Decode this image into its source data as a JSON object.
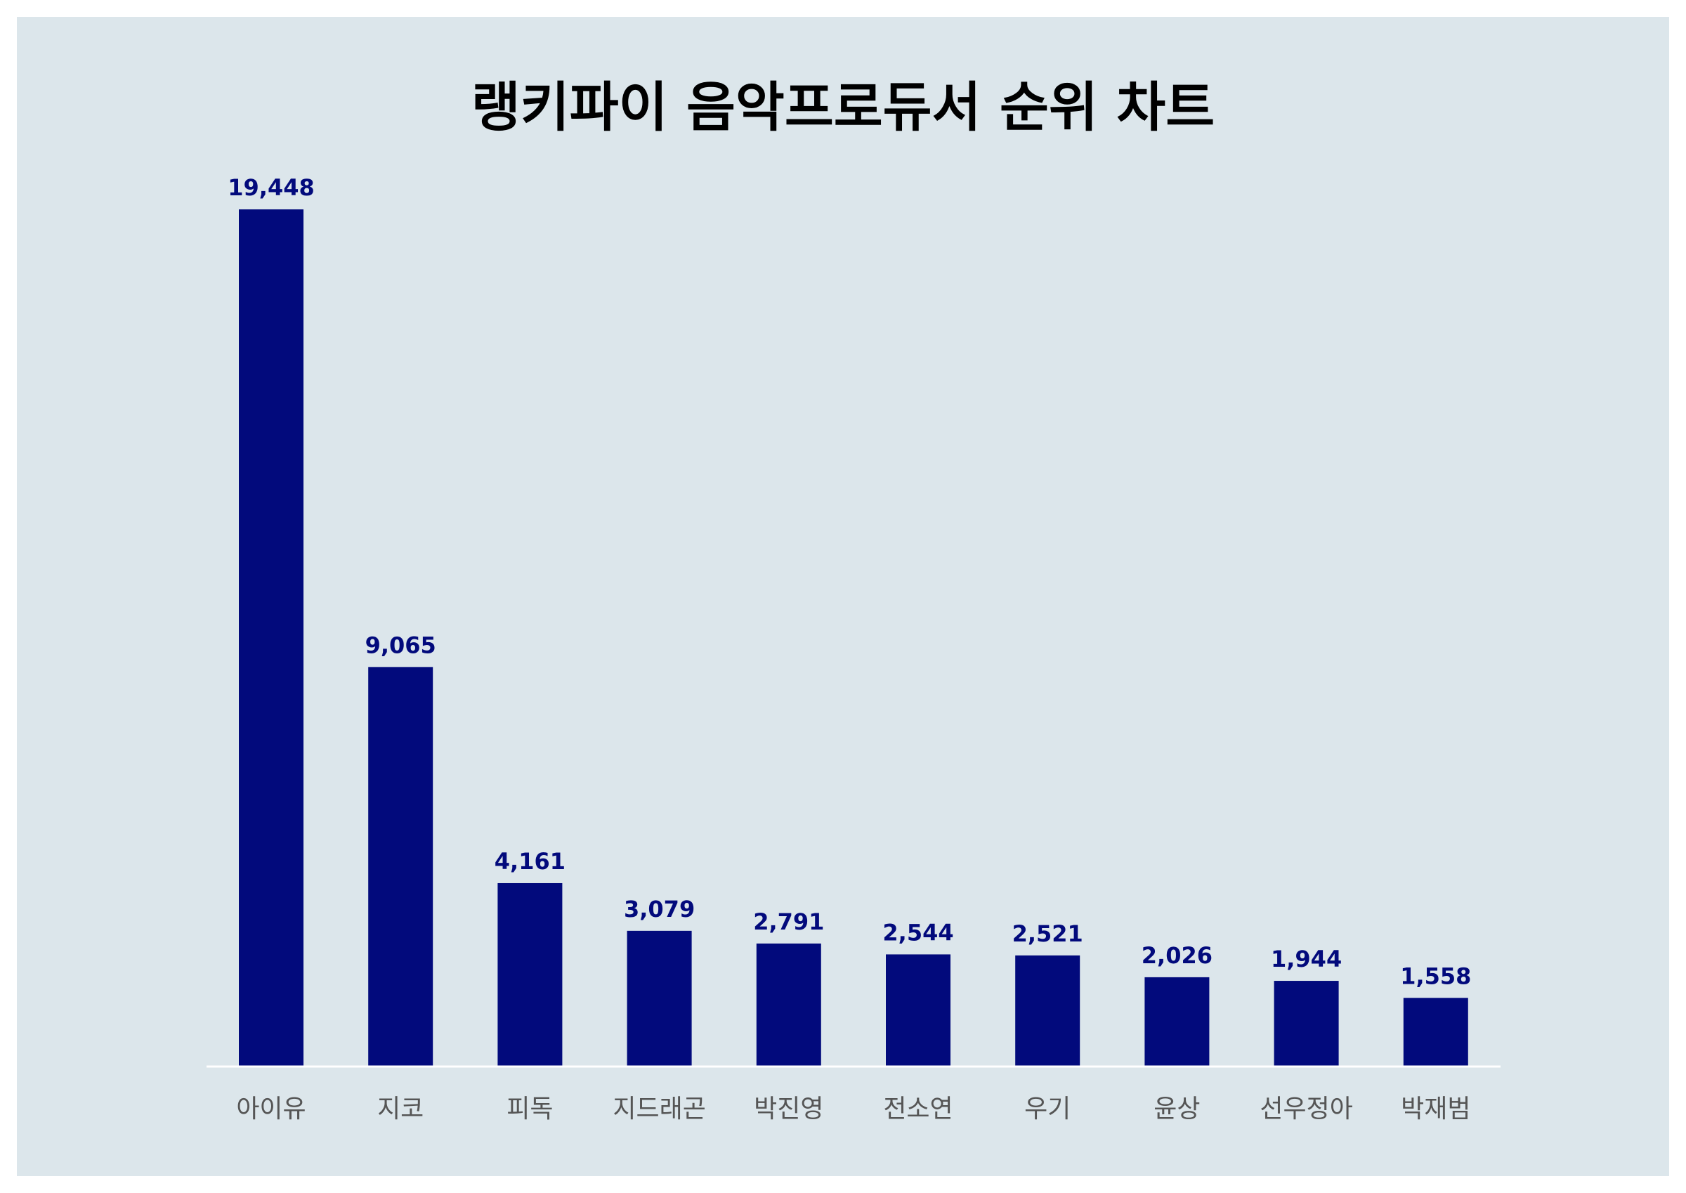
{
  "chart_data": {
    "type": "bar",
    "title": "랭키파이 음악프로듀서 순위 차트",
    "categories": [
      "아이유",
      "지코",
      "피독",
      "지드래곤",
      "박진영",
      "전소연",
      "우기",
      "윤상",
      "선우정아",
      "박재범"
    ],
    "values": [
      19448,
      9065,
      4161,
      3079,
      2791,
      2544,
      2521,
      2026,
      1944,
      1558
    ],
    "value_labels": [
      "19,448",
      "9,065",
      "4,161",
      "3,079",
      "2,791",
      "2,544",
      "2,521",
      "2,026",
      "1,944",
      "1,558"
    ],
    "ylim": [
      0,
      19448
    ],
    "grid": false,
    "legend": "none",
    "colors": {
      "bar": "#020a7c",
      "value_label": "#020a7c",
      "baseline": "#ffffff",
      "background": "#dce6eb"
    }
  }
}
